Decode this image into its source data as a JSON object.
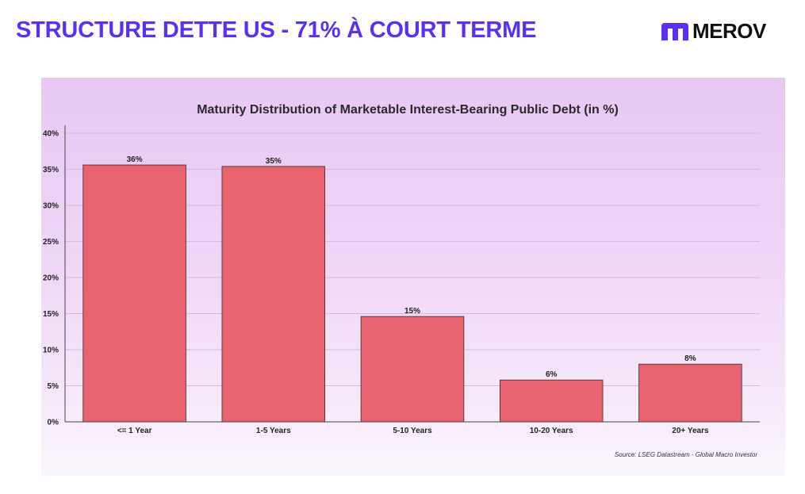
{
  "header": {
    "headline": "STRUCTURE DETTE US - 71% À COURT TERME",
    "brand_name": "MEROV",
    "brand_icon": "merov-logo-icon",
    "headline_color": "#5b2ff5"
  },
  "chart_data": {
    "type": "bar",
    "title": "Maturity Distribution of Marketable Interest-Bearing Public Debt (in %)",
    "categories": [
      "<= 1 Year",
      "1-5 Years",
      "5-10 Years",
      "10-20 Years",
      "20+ Years"
    ],
    "values": [
      35.6,
      35.4,
      14.6,
      5.8,
      8.0
    ],
    "data_labels": [
      "36%",
      "35%",
      "15%",
      "6%",
      "8%"
    ],
    "ylim": [
      0,
      40
    ],
    "yticks": [
      0,
      5,
      10,
      15,
      20,
      25,
      30,
      35,
      40
    ],
    "ytick_labels": [
      "0%",
      "5%",
      "10%",
      "15%",
      "20%",
      "25%",
      "30%",
      "35%",
      "40%"
    ],
    "xlabel": "",
    "ylabel": "",
    "grid": true,
    "bar_color": "#e8636f",
    "source": "Source: LSEG Datastream - Global Macro Investor"
  }
}
